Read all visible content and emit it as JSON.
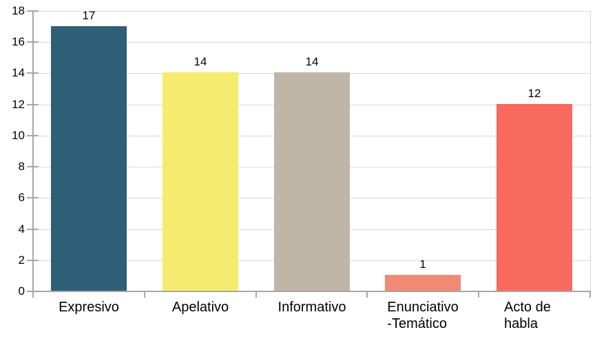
{
  "chart_data": {
    "type": "bar",
    "title": "",
    "xlabel": "",
    "ylabel": "",
    "categories": [
      "Expresivo",
      "Apelativo",
      "Informativo",
      "Enunciativo\n-Temático",
      "Acto de habla"
    ],
    "values": [
      17,
      14,
      14,
      1,
      12
    ],
    "data_labels": [
      "17",
      "14",
      "14",
      "1",
      "12"
    ],
    "bar_colors": [
      "#2f5e77",
      "#f5ec6f",
      "#bfb6a8",
      "#f18a73",
      "#f8695e"
    ],
    "ylim": [
      0,
      18
    ],
    "yticks": [
      0,
      2,
      4,
      6,
      8,
      10,
      12,
      14,
      16,
      18
    ],
    "grid": "horizontal",
    "legend": "none"
  },
  "colors": {
    "background": "#ffffff",
    "gridline": "#d9d9d9",
    "axis": "#a6a6a6",
    "text": "#000000"
  }
}
